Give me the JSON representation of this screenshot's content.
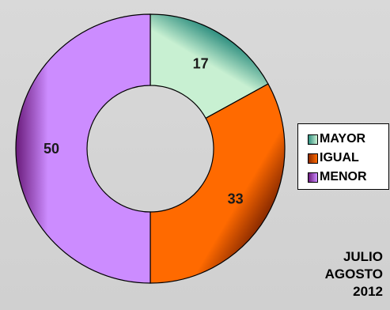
{
  "chart_data": {
    "type": "pie",
    "title": "",
    "slices": [
      {
        "label": "MAYOR",
        "value": 17,
        "color": "#c8f0d2",
        "edge": "#2f8f80"
      },
      {
        "label": "IGUAL",
        "value": 33,
        "color": "#ff6a00",
        "edge": "#8a2a00"
      },
      {
        "label": "MENOR",
        "value": 50,
        "color": "#cc8cff",
        "edge": "#6a1a7a"
      }
    ],
    "legend_position": "right",
    "hole": "donut"
  },
  "annotation": {
    "line1": "JULIO",
    "line2": "AGOSTO",
    "line3": "2012"
  }
}
